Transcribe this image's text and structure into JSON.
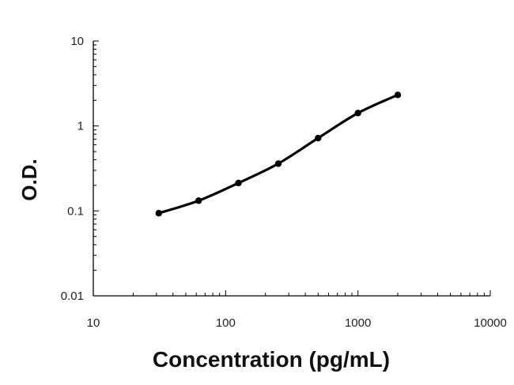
{
  "chart_data": {
    "type": "line",
    "title": "",
    "xlabel": "Concentration (pg/mL)",
    "ylabel": "O.D.",
    "x_scale": "log",
    "y_scale": "log",
    "xlim": [
      10,
      10000
    ],
    "ylim": [
      0.01,
      10
    ],
    "x_ticks": [
      {
        "value": 10,
        "label": "10"
      },
      {
        "value": 100,
        "label": "100"
      },
      {
        "value": 1000,
        "label": "1000"
      },
      {
        "value": 10000,
        "label": "10000"
      }
    ],
    "y_ticks": [
      {
        "value": 0.01,
        "label": "0.01"
      },
      {
        "value": 0.1,
        "label": "0.1"
      },
      {
        "value": 1,
        "label": "1"
      },
      {
        "value": 10,
        "label": "10"
      }
    ],
    "grid": false,
    "legend": "none",
    "series": [
      {
        "x": [
          31.25,
          62.5,
          125,
          250,
          500,
          1000,
          2000
        ],
        "y": [
          0.094,
          0.132,
          0.213,
          0.36,
          0.72,
          1.42,
          2.32
        ]
      }
    ],
    "colors": {
      "line": "#000000",
      "axis": "#000000"
    }
  }
}
